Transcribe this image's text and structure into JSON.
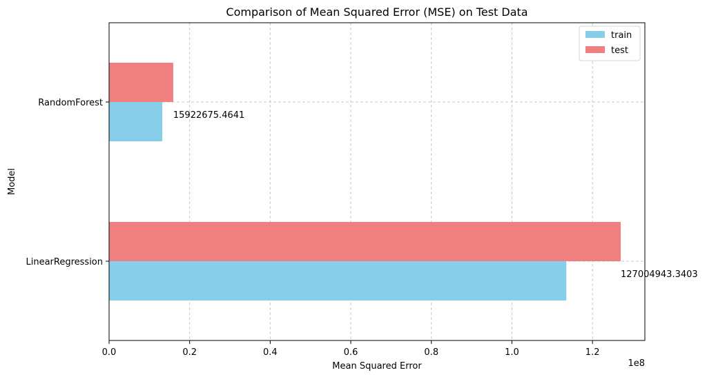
{
  "chart_data": {
    "type": "bar",
    "orientation": "horizontal",
    "title": "Comparison of Mean Squared Error (MSE) on Test Data",
    "xlabel": "Mean Squared Error",
    "ylabel": "Model",
    "x_scale_label": "1e8",
    "xlim": [
      0,
      133000000
    ],
    "x_ticks": [
      0,
      20000000,
      40000000,
      60000000,
      80000000,
      100000000,
      120000000
    ],
    "x_tick_labels": [
      "0.0",
      "0.2",
      "0.4",
      "0.6",
      "0.8",
      "1.0",
      "1.2"
    ],
    "categories": [
      "LinearRegression",
      "RandomForest"
    ],
    "series": [
      {
        "name": "train",
        "color": "#87CEEB",
        "values": [
          113500000,
          13200000
        ]
      },
      {
        "name": "test",
        "color": "#F08080",
        "values": [
          127004943.3403,
          15922675.4641
        ]
      }
    ],
    "data_labels": [
      "127004943.3403",
      "15922675.4641"
    ],
    "grid": true,
    "legend_position": "top-right"
  }
}
